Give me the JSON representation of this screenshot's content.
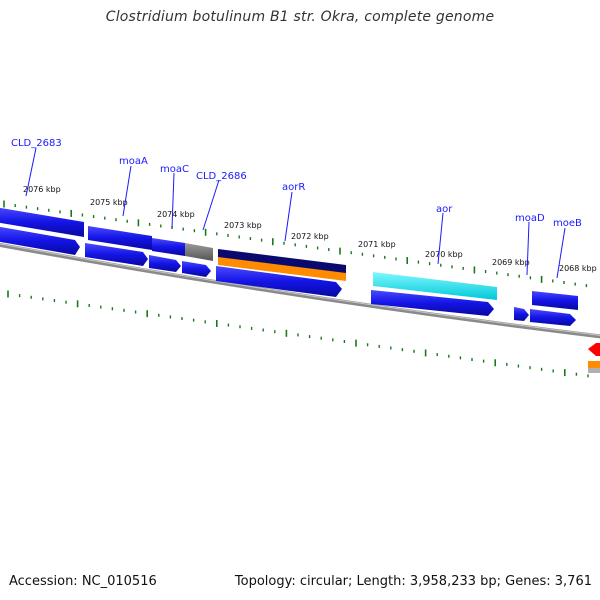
{
  "title": "Clostridium botulinum B1 str. Okra, complete genome",
  "footer": {
    "accession": "Accession: NC_010516",
    "summary": "Topology: circular; Length: 3,958,233 bp; Genes: 3,761"
  },
  "colors": {
    "gene_blue": "#1414e6",
    "gene_navy": "#0a0a6e",
    "gene_gray": "#707070",
    "gene_orange": "#ff8c00",
    "gene_cyan": "#00e5ee",
    "gene_red": "#ff0000",
    "tick_green": "#1a7a1a",
    "backbone_gray": "#8a8a8a",
    "label_blue": "#1a1aff"
  },
  "kbp_labels": [
    "2076 kbp",
    "2075 kbp",
    "2074 kbp",
    "2073 kbp",
    "2072 kbp",
    "2071 kbp",
    "2070 kbp",
    "2069 kbp",
    "2068 kbp"
  ],
  "gene_labels": [
    "CLD_2683",
    "moaA",
    "moaC",
    "CLD_2686",
    "aorR",
    "aor",
    "moaD",
    "moeB"
  ]
}
